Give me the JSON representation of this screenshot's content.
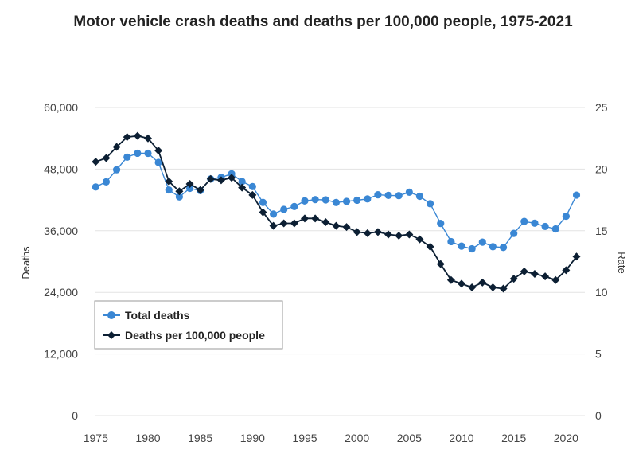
{
  "chart_data": {
    "type": "line",
    "title": "Motor vehicle crash deaths and deaths per 100,000 people, 1975-2021",
    "xlabel": "",
    "ylabel": "Deaths",
    "y2label": "Rate",
    "x": [
      1975,
      1976,
      1977,
      1978,
      1979,
      1980,
      1981,
      1982,
      1983,
      1984,
      1985,
      1986,
      1987,
      1988,
      1989,
      1990,
      1991,
      1992,
      1993,
      1994,
      1995,
      1996,
      1997,
      1998,
      1999,
      2000,
      2001,
      2002,
      2003,
      2004,
      2005,
      2006,
      2007,
      2008,
      2009,
      2010,
      2011,
      2012,
      2013,
      2014,
      2015,
      2016,
      2017,
      2018,
      2019,
      2020,
      2021
    ],
    "xlim": [
      1974.9,
      2021.8
    ],
    "ylim": [
      0,
      60000
    ],
    "y2lim": [
      0,
      25
    ],
    "x_ticks": [
      "1975",
      "1980",
      "1985",
      "1990",
      "1995",
      "2000",
      "2005",
      "2010",
      "2015",
      "2020"
    ],
    "y_ticks": [
      "0",
      "12,000",
      "24,000",
      "36,000",
      "48,000",
      "60,000"
    ],
    "y2_ticks": [
      "0",
      "5",
      "10",
      "15",
      "20",
      "25"
    ],
    "grid": true,
    "legend_position": "bottom-left",
    "series": [
      {
        "name": "Total deaths",
        "axis": "left",
        "color": "#3a87d4",
        "marker": "circle",
        "values": [
          44525,
          45523,
          47878,
          50331,
          51093,
          51091,
          49301,
          43945,
          42589,
          44257,
          43825,
          46087,
          46390,
          47087,
          45582,
          44599,
          41508,
          39250,
          40150,
          40716,
          41817,
          42065,
          42013,
          41501,
          41717,
          41945,
          42196,
          43005,
          42884,
          42836,
          43510,
          42708,
          41259,
          37423,
          33883,
          32999,
          32479,
          33782,
          32893,
          32744,
          35484,
          37806,
          37473,
          36835,
          36355,
          38824,
          42939
        ]
      },
      {
        "name": "Deaths per 100,000 people",
        "axis": "right",
        "color": "#0c1f33",
        "marker": "diamond",
        "values": [
          20.6,
          20.9,
          21.8,
          22.6,
          22.7,
          22.5,
          21.5,
          19.0,
          18.2,
          18.8,
          18.3,
          19.2,
          19.1,
          19.3,
          18.5,
          17.9,
          16.5,
          15.4,
          15.6,
          15.6,
          16.0,
          16.0,
          15.7,
          15.4,
          15.3,
          14.9,
          14.8,
          14.9,
          14.7,
          14.6,
          14.7,
          14.3,
          13.7,
          12.3,
          11.0,
          10.7,
          10.4,
          10.8,
          10.4,
          10.3,
          11.1,
          11.7,
          11.5,
          11.3,
          11.0,
          11.8,
          12.9
        ]
      }
    ]
  },
  "colors": {
    "total_deaths": "#3a87d4",
    "rate": "#0c1f33"
  }
}
